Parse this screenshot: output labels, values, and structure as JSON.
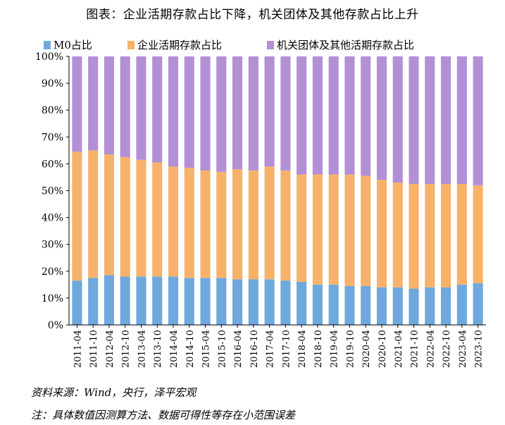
{
  "title": "图表：企业活期存款占比下降，机关团体及其他存款占比上升",
  "source": "资料来源：Wind，央行，泽平宏观",
  "note": "注：具体数值因测算方法、数据可得性等存在小范围误差",
  "colors": {
    "m0": "#6fa8dc",
    "enterprise": "#f6b26b",
    "institution": "#b390d6"
  },
  "chart_data": {
    "type": "bar",
    "stacked": true,
    "ylim": [
      0,
      100
    ],
    "y_ticks": [
      "0%",
      "10%",
      "20%",
      "30%",
      "40%",
      "50%",
      "60%",
      "70%",
      "80%",
      "90%",
      "100%"
    ],
    "x_tick_labels": [
      "2011-04",
      "2011-10",
      "2012-04",
      "2012-10",
      "2013-04",
      "2013-10",
      "2014-04",
      "2014-10",
      "2015-04",
      "2015-10",
      "2016-04",
      "2016-10",
      "2017-04",
      "2017-10",
      "2018-04",
      "2018-10",
      "2019-04",
      "2019-10",
      "2020-04",
      "2020-10",
      "2021-04",
      "2021-10",
      "2022-04",
      "2022-10",
      "2023-04",
      "2023-10"
    ],
    "legend_position": "top",
    "series": [
      {
        "name": "M0占比",
        "values": [
          16.5,
          17.5,
          18.5,
          18,
          18,
          18,
          18,
          17.5,
          17.5,
          17.5,
          17,
          17,
          17,
          16.5,
          16,
          15,
          15,
          14.5,
          14.5,
          14,
          14,
          13.5,
          14,
          14,
          15,
          15.5
        ]
      },
      {
        "name": "企业活期存款占比",
        "values": [
          48,
          47.5,
          45,
          44.5,
          43.5,
          42.5,
          41,
          41,
          40,
          39.5,
          41,
          40.5,
          42,
          41,
          40,
          41,
          41,
          41.5,
          41,
          40,
          39,
          39,
          38.5,
          38.5,
          37.5,
          36.5
        ]
      },
      {
        "name": "机关团体及其他活期存款占比",
        "values": [
          35.5,
          35,
          36.5,
          37.5,
          38.5,
          39.5,
          41,
          41.5,
          42.5,
          43,
          42,
          42.5,
          41,
          42.5,
          44,
          44,
          44,
          44,
          44.5,
          46,
          47,
          47.5,
          47.5,
          47.5,
          47.5,
          48
        ]
      }
    ]
  }
}
